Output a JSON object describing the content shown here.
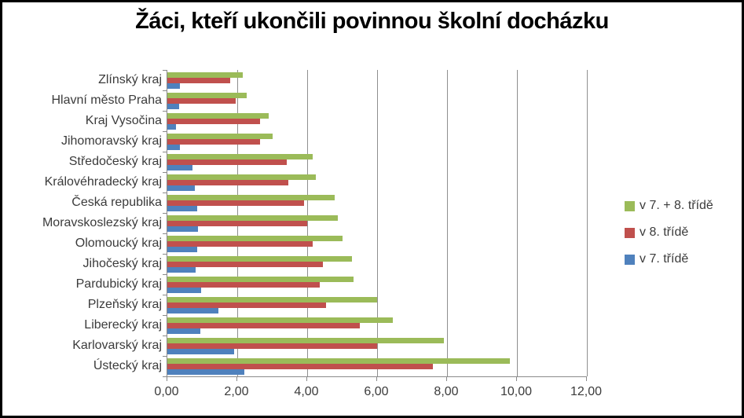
{
  "window": {
    "background_color": "#ffffff",
    "frame_border_color": "#000000"
  },
  "chart_data": {
    "type": "bar",
    "orientation": "horizontal",
    "title": "Žáci, kteří ukončili povinnou školní docházku",
    "categories": [
      "Zlínský kraj",
      "Hlavní město Praha",
      "Kraj Vysočina",
      "Jihomoravský kraj",
      "Středočeský kraj",
      "Královéhradecký kraj",
      "Česká republika",
      "Moravskoslezský kraj",
      "Olomoucký kraj",
      "Jihočeský kraj",
      "Pardubický kraj",
      "Plzeňský kraj",
      "Liberecký kraj",
      "Karlovarský kraj",
      "Ústecký kraj"
    ],
    "series": [
      {
        "name": "v 7. + 8. třídě",
        "color": "#9bbb59",
        "values": [
          2.15,
          2.28,
          2.9,
          3.0,
          4.15,
          4.25,
          4.78,
          4.88,
          5.0,
          5.28,
          5.32,
          6.0,
          6.45,
          7.9,
          9.8
        ]
      },
      {
        "name": "v 8. třídě",
        "color": "#c0504d",
        "values": [
          1.8,
          1.95,
          2.65,
          2.65,
          3.42,
          3.47,
          3.92,
          4.0,
          4.15,
          4.46,
          4.35,
          4.55,
          5.5,
          6.0,
          7.6
        ]
      },
      {
        "name": "v 7. třídě",
        "color": "#4f81bd",
        "values": [
          0.35,
          0.33,
          0.25,
          0.35,
          0.73,
          0.78,
          0.86,
          0.88,
          0.85,
          0.82,
          0.97,
          1.45,
          0.95,
          1.9,
          2.2
        ]
      }
    ],
    "xlim": [
      0,
      12
    ],
    "x_tick_values": [
      0,
      2,
      4,
      6,
      8,
      10,
      12
    ],
    "x_tick_labels": [
      "0,00",
      "2,00",
      "4,00",
      "6,00",
      "8,00",
      "10,00",
      "12,00"
    ],
    "grid": "vertical-major",
    "legend_position": "right",
    "axis_color": "#8a8a8a",
    "gridline_color": "#8f8f8f",
    "text_color": "#3b3b3b"
  }
}
